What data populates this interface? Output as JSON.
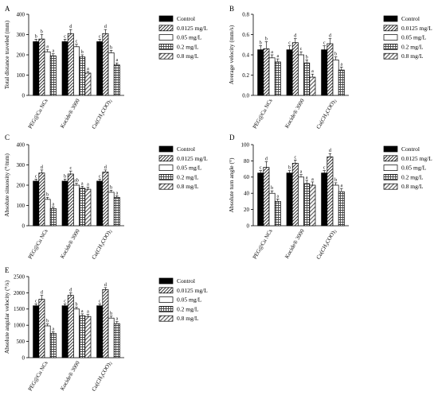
{
  "legend_entries": [
    "Control",
    "0.0125 mg/L",
    "0.05 mg/L",
    "0.2 mg/L",
    "0.8 mg/L"
  ],
  "chart_data": [
    {
      "type": "bar",
      "panel": "A",
      "title": "",
      "ylabel": "Total distance traveled (mm)",
      "ylim": [
        0,
        400
      ],
      "yticks": [
        "0",
        "100",
        "200",
        "300",
        "400"
      ],
      "categories": [
        "PEG@Cu NCs",
        "Kocide® 3000",
        "Cu(CH3COO)2"
      ],
      "legend_placement": "right",
      "series": [
        {
          "name": "Control",
          "values": [
            265,
            265,
            265
          ],
          "errors": [
            12,
            12,
            12
          ],
          "labels": [
            "b",
            "c",
            "c"
          ]
        },
        {
          "name": "0.0125 mg/L",
          "values": [
            278,
            305,
            305
          ],
          "errors": [
            22,
            20,
            20
          ],
          "labels": [
            "b",
            "d",
            "d"
          ]
        },
        {
          "name": "0.05 mg/L",
          "values": [
            215,
            240,
            210
          ],
          "errors": [
            12,
            12,
            12
          ],
          "labels": [
            "a",
            "c",
            "b"
          ]
        },
        {
          "name": "0.2 mg/L",
          "values": [
            195,
            190,
            150
          ],
          "errors": [
            10,
            10,
            10
          ],
          "labels": [
            "a",
            "b",
            "a"
          ]
        },
        {
          "name": "0.8 mg/L",
          "values": [
            null,
            110,
            null
          ],
          "errors": [
            0,
            8,
            0
          ],
          "labels": [
            "",
            "a",
            ""
          ]
        }
      ]
    },
    {
      "type": "bar",
      "panel": "B",
      "title": "",
      "ylabel": "Average velocity (mm/s)",
      "ylim": [
        0,
        0.8
      ],
      "yticks": [
        "0.0",
        "0.2",
        "0.4",
        "0.6",
        "0.8"
      ],
      "categories": [
        "PEG@Cu NCs",
        "Kocide® 3000",
        "Cu(CH3COO)2"
      ],
      "legend_placement": "right",
      "series": [
        {
          "name": "Control",
          "values": [
            0.45,
            0.45,
            0.45
          ],
          "errors": [
            0.04,
            0.04,
            0.04
          ],
          "labels": [
            "b",
            "c",
            "c"
          ]
        },
        {
          "name": "0.0125 mg/L",
          "values": [
            0.46,
            0.52,
            0.51
          ],
          "errors": [
            0.07,
            0.04,
            0.05
          ],
          "labels": [
            "b",
            "d",
            "d"
          ]
        },
        {
          "name": "0.05 mg/L",
          "values": [
            0.37,
            0.4,
            0.35
          ],
          "errors": [
            0.03,
            0.03,
            0.03
          ],
          "labels": [
            "a",
            "c",
            "b"
          ]
        },
        {
          "name": "0.2 mg/L",
          "values": [
            0.33,
            0.32,
            0.25
          ],
          "errors": [
            0.03,
            0.03,
            0.03
          ],
          "labels": [
            "a",
            "b",
            "a"
          ]
        },
        {
          "name": "0.8 mg/L",
          "values": [
            null,
            0.18,
            null
          ],
          "errors": [
            0,
            0.03,
            0
          ],
          "labels": [
            "",
            "a",
            ""
          ]
        }
      ]
    },
    {
      "type": "bar",
      "panel": "C",
      "title": "",
      "ylabel": "Absolute sinuosity (°/mm)",
      "ylim": [
        0,
        400
      ],
      "yticks": [
        "0",
        "100",
        "200",
        "300",
        "400"
      ],
      "categories": [
        "PEG@Cu NCs",
        "Kocide® 3000",
        "Cu(CH3COO)2"
      ],
      "legend_placement": "right",
      "series": [
        {
          "name": "Control",
          "values": [
            220,
            220,
            220
          ],
          "errors": [
            10,
            10,
            10
          ],
          "labels": [
            "c",
            "b",
            "c"
          ]
        },
        {
          "name": "0.0125 mg/L",
          "values": [
            260,
            255,
            265
          ],
          "errors": [
            15,
            15,
            10
          ],
          "labels": [
            "d",
            "c",
            "d"
          ]
        },
        {
          "name": "0.05 mg/L",
          "values": [
            130,
            200,
            165
          ],
          "errors": [
            10,
            10,
            10
          ],
          "labels": [
            "b",
            "ab",
            "b"
          ]
        },
        {
          "name": "0.2 mg/L",
          "values": [
            85,
            185,
            140
          ],
          "errors": [
            8,
            10,
            8
          ],
          "labels": [
            "a",
            "a",
            "a"
          ]
        },
        {
          "name": "0.8 mg/L",
          "values": [
            null,
            180,
            null
          ],
          "errors": [
            0,
            10,
            0
          ],
          "labels": [
            "",
            "a",
            ""
          ]
        }
      ]
    },
    {
      "type": "bar",
      "panel": "D",
      "title": "",
      "ylabel": "Absolute turn angle (°)",
      "ylim": [
        0,
        100
      ],
      "yticks": [
        "0",
        "20",
        "40",
        "60",
        "80",
        "100"
      ],
      "categories": [
        "PEG@Cu NCs",
        "Kocide® 3000",
        "Cu(CH3COO)2"
      ],
      "legend_placement": "right",
      "series": [
        {
          "name": "Control",
          "values": [
            65,
            65,
            65
          ],
          "errors": [
            3,
            3,
            3
          ],
          "labels": [
            "c",
            "b",
            "c"
          ]
        },
        {
          "name": "0.0125 mg/L",
          "values": [
            72,
            77,
            85
          ],
          "errors": [
            7,
            4,
            4
          ],
          "labels": [
            "d",
            "c",
            "d"
          ]
        },
        {
          "name": "0.05 mg/L",
          "values": [
            40,
            60,
            50
          ],
          "errors": [
            3,
            3,
            3
          ],
          "labels": [
            "b",
            "a",
            "b"
          ]
        },
        {
          "name": "0.2 mg/L",
          "values": [
            30,
            52,
            42
          ],
          "errors": [
            3,
            4,
            4
          ],
          "labels": [
            "a",
            "a",
            "a"
          ]
        },
        {
          "name": "0.8 mg/L",
          "values": [
            null,
            50,
            null
          ],
          "errors": [
            0,
            4,
            0
          ],
          "labels": [
            "",
            "a",
            ""
          ]
        }
      ]
    },
    {
      "type": "bar",
      "panel": "E",
      "title": "",
      "ylabel": "Absolute angular velocity (°/s)",
      "ylim": [
        0,
        2500
      ],
      "yticks": [
        "0",
        "500",
        "1000",
        "1500",
        "2000",
        "2500"
      ],
      "categories": [
        "PEG@Cu NCs",
        "Kocide® 3000",
        "Cu(CH3COO)2"
      ],
      "legend_placement": "right",
      "series": [
        {
          "name": "Control",
          "values": [
            1600,
            1600,
            1600
          ],
          "errors": [
            60,
            60,
            60
          ],
          "labels": [
            "c",
            "c",
            "c"
          ]
        },
        {
          "name": "0.0125 mg/L",
          "values": [
            1800,
            1920,
            2100
          ],
          "errors": [
            120,
            80,
            60
          ],
          "labels": [
            "d",
            "d",
            "d"
          ]
        },
        {
          "name": "0.05 mg/L",
          "values": [
            980,
            1500,
            1220
          ],
          "errors": [
            60,
            60,
            60
          ],
          "labels": [
            "b",
            "b",
            "b"
          ]
        },
        {
          "name": "0.2 mg/L",
          "values": [
            750,
            1290,
            1050
          ],
          "errors": [
            50,
            60,
            60
          ],
          "labels": [
            "a",
            "a",
            "a"
          ]
        },
        {
          "name": "0.8 mg/L",
          "values": [
            null,
            1270,
            null
          ],
          "errors": [
            0,
            60,
            0
          ],
          "labels": [
            "",
            "a",
            ""
          ]
        }
      ]
    }
  ]
}
